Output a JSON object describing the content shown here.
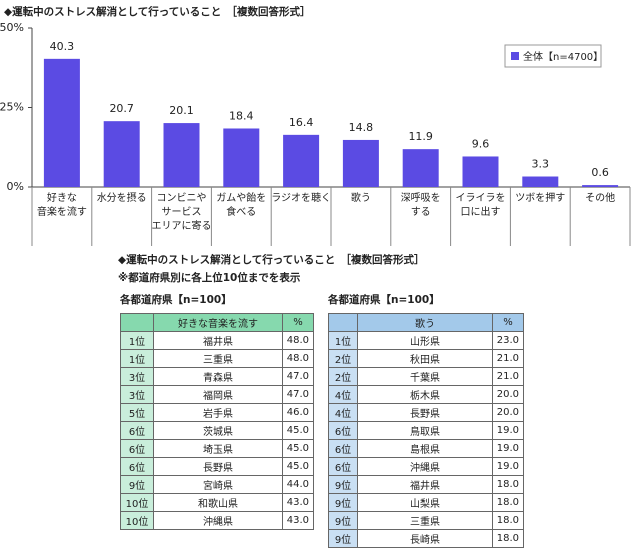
{
  "chart_data": {
    "type": "bar",
    "title": "◆運転中のストレス解消として行っていること　［複数回答形式］",
    "categories": [
      "好きな\n音楽を流す",
      "水分を摂る",
      "コンビニや\nサービス\nエリアに寄る",
      "ガムや飴を\n食べる",
      "ラジオを聴く",
      "歌う",
      "深呼吸を\nする",
      "イライラを\n口に出す",
      "ツボを押す",
      "その他"
    ],
    "series": [
      {
        "name": "全体【n=4700】",
        "color": "#5b4be3",
        "values": [
          40.3,
          20.7,
          20.1,
          18.4,
          16.4,
          14.8,
          11.9,
          9.6,
          3.3,
          0.6
        ]
      }
    ],
    "ylim": [
      0,
      50
    ],
    "yticks": [
      {
        "value": 0,
        "label": "0%"
      },
      {
        "value": 25,
        "label": "25%"
      },
      {
        "value": 50,
        "label": "50%"
      }
    ],
    "grid": false,
    "legend": "upper right"
  },
  "section": {
    "title": "◆運転中のストレス解消として行っていること　［複数回答形式］",
    "note": "※都道府県別に各上位10位までを表示"
  },
  "tables": [
    {
      "caption": "各都道府県【n=100】",
      "headers": [
        "好きな音楽を流す",
        "%"
      ],
      "rows": [
        [
          "1位",
          "福井県",
          "48.0"
        ],
        [
          "1位",
          "三重県",
          "48.0"
        ],
        [
          "3位",
          "青森県",
          "47.0"
        ],
        [
          "3位",
          "福岡県",
          "47.0"
        ],
        [
          "5位",
          "岩手県",
          "46.0"
        ],
        [
          "6位",
          "茨城県",
          "45.0"
        ],
        [
          "6位",
          "埼玉県",
          "45.0"
        ],
        [
          "6位",
          "長野県",
          "45.0"
        ],
        [
          "9位",
          "宮崎県",
          "44.0"
        ],
        [
          "10位",
          "和歌山県",
          "43.0"
        ],
        [
          "10位",
          "沖縄県",
          "43.0"
        ]
      ]
    },
    {
      "caption": "各都道府県【n=100】",
      "headers": [
        "歌う",
        "%"
      ],
      "rows": [
        [
          "1位",
          "山形県",
          "23.0"
        ],
        [
          "2位",
          "秋田県",
          "21.0"
        ],
        [
          "2位",
          "千葉県",
          "21.0"
        ],
        [
          "4位",
          "栃木県",
          "20.0"
        ],
        [
          "4位",
          "長野県",
          "20.0"
        ],
        [
          "6位",
          "鳥取県",
          "19.0"
        ],
        [
          "6位",
          "島根県",
          "19.0"
        ],
        [
          "6位",
          "沖縄県",
          "19.0"
        ],
        [
          "9位",
          "福井県",
          "18.0"
        ],
        [
          "9位",
          "山梨県",
          "18.0"
        ],
        [
          "9位",
          "三重県",
          "18.0"
        ],
        [
          "9位",
          "長崎県",
          "18.0"
        ]
      ]
    }
  ]
}
